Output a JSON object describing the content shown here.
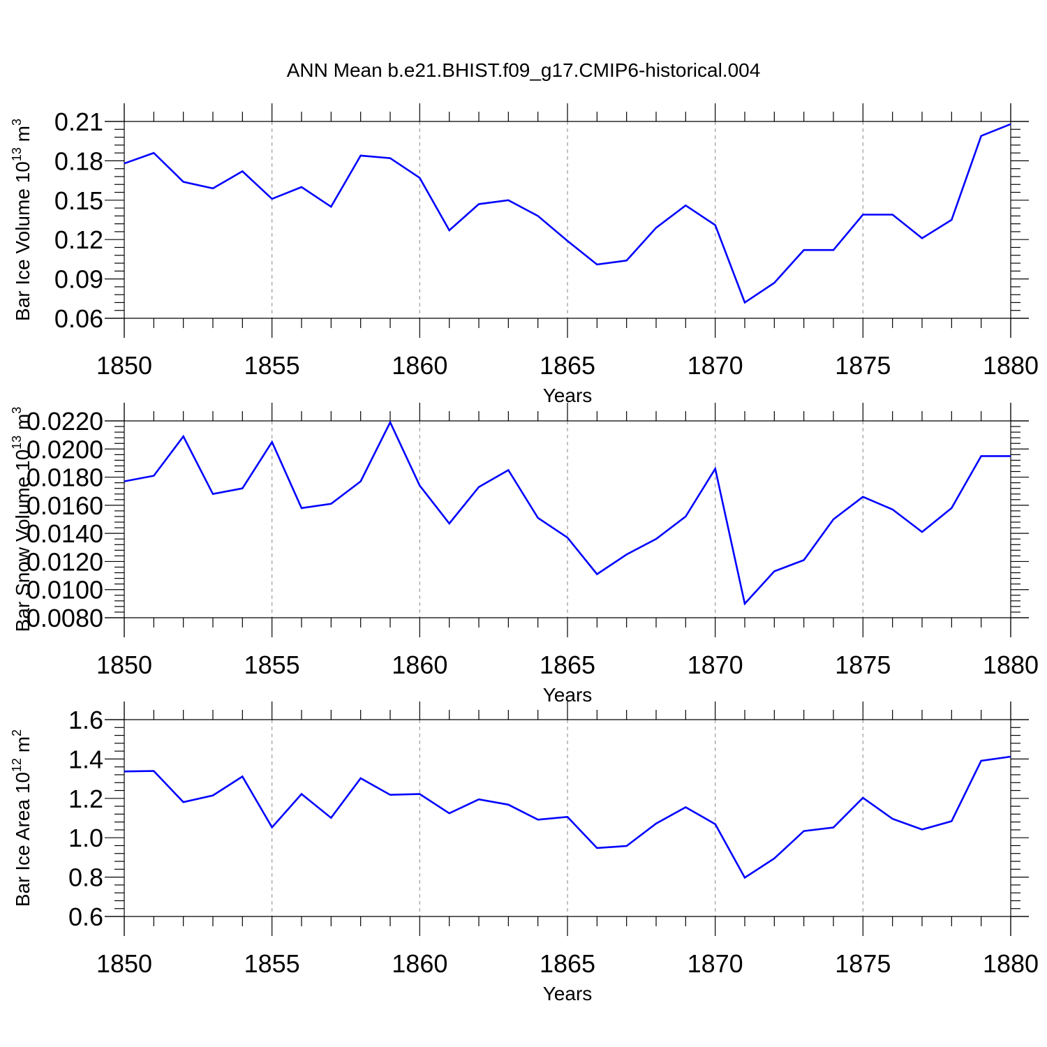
{
  "title": "ANN Mean b.e21.BHIST.f09_g17.CMIP6-historical.004",
  "line_color": "#0000ff",
  "chart_data": [
    {
      "type": "line",
      "title": "ANN Mean b.e21.BHIST.f09_g17.CMIP6-historical.004",
      "xlabel": "Years",
      "ylabel": {
        "main": "Bar Ice Volume 10",
        "exp": "13",
        "unit": " m",
        "unit_exp": "3"
      },
      "xlim": [
        1850,
        1880
      ],
      "ylim": [
        0.06,
        0.21
      ],
      "yticks": [
        "0.06",
        "0.09",
        "0.12",
        "0.15",
        "0.18",
        "0.21"
      ],
      "xticks": [
        "1850",
        "1855",
        "1860",
        "1865",
        "1870",
        "1875",
        "1880"
      ],
      "x": [
        1850,
        1851,
        1852,
        1853,
        1854,
        1855,
        1856,
        1857,
        1858,
        1859,
        1860,
        1861,
        1862,
        1863,
        1864,
        1865,
        1866,
        1867,
        1868,
        1869,
        1870,
        1871,
        1872,
        1873,
        1874,
        1875,
        1876,
        1877,
        1878,
        1879,
        1880
      ],
      "values": [
        0.178,
        0.186,
        0.164,
        0.159,
        0.172,
        0.151,
        0.16,
        0.145,
        0.184,
        0.182,
        0.167,
        0.127,
        0.147,
        0.15,
        0.138,
        0.119,
        0.101,
        0.104,
        0.129,
        0.146,
        0.131,
        0.072,
        0.087,
        0.112,
        0.112,
        0.139,
        0.139,
        0.121,
        0.135,
        0.199,
        0.208
      ]
    },
    {
      "type": "line",
      "xlabel": "Years",
      "ylabel": {
        "main": "Bar Snow Volume 10",
        "exp": "13",
        "unit": " m",
        "unit_exp": "3"
      },
      "xlim": [
        1850,
        1880
      ],
      "ylim": [
        0.008,
        0.022
      ],
      "yticks": [
        "0.0080",
        "0.0100",
        "0.0120",
        "0.0140",
        "0.0160",
        "0.0180",
        "0.0200",
        "0.0220"
      ],
      "xticks": [
        "1850",
        "1855",
        "1860",
        "1865",
        "1870",
        "1875",
        "1880"
      ],
      "x": [
        1850,
        1851,
        1852,
        1853,
        1854,
        1855,
        1856,
        1857,
        1858,
        1859,
        1860,
        1861,
        1862,
        1863,
        1864,
        1865,
        1866,
        1867,
        1868,
        1869,
        1870,
        1871,
        1872,
        1873,
        1874,
        1875,
        1876,
        1877,
        1878,
        1879,
        1880
      ],
      "values": [
        0.0177,
        0.0181,
        0.0209,
        0.0168,
        0.0172,
        0.0205,
        0.0158,
        0.0161,
        0.0177,
        0.0219,
        0.0174,
        0.0147,
        0.0173,
        0.0185,
        0.0151,
        0.0137,
        0.0111,
        0.0125,
        0.0136,
        0.0152,
        0.0186,
        0.009,
        0.0113,
        0.0121,
        0.015,
        0.0166,
        0.0157,
        0.0141,
        0.0158,
        0.0195,
        0.0195
      ]
    },
    {
      "type": "line",
      "xlabel": "Years",
      "ylabel": {
        "main": "Bar Ice Area 10",
        "exp": "12",
        "unit": " m",
        "unit_exp": "2"
      },
      "xlim": [
        1850,
        1880
      ],
      "ylim": [
        0.6,
        1.6
      ],
      "yticks": [
        "0.6",
        "0.8",
        "1.0",
        "1.2",
        "1.4",
        "1.6"
      ],
      "xticks": [
        "1850",
        "1855",
        "1860",
        "1865",
        "1870",
        "1875",
        "1880"
      ],
      "x": [
        1850,
        1851,
        1852,
        1853,
        1854,
        1855,
        1856,
        1857,
        1858,
        1859,
        1860,
        1861,
        1862,
        1863,
        1864,
        1865,
        1866,
        1867,
        1868,
        1869,
        1870,
        1871,
        1872,
        1873,
        1874,
        1875,
        1876,
        1877,
        1878,
        1879,
        1880
      ],
      "values": [
        1.337,
        1.339,
        1.181,
        1.215,
        1.311,
        1.053,
        1.222,
        1.101,
        1.302,
        1.218,
        1.222,
        1.124,
        1.195,
        1.168,
        1.092,
        1.106,
        0.948,
        0.958,
        1.072,
        1.155,
        1.069,
        0.797,
        0.895,
        1.034,
        1.052,
        1.203,
        1.096,
        1.042,
        1.084,
        1.391,
        1.412
      ]
    }
  ]
}
